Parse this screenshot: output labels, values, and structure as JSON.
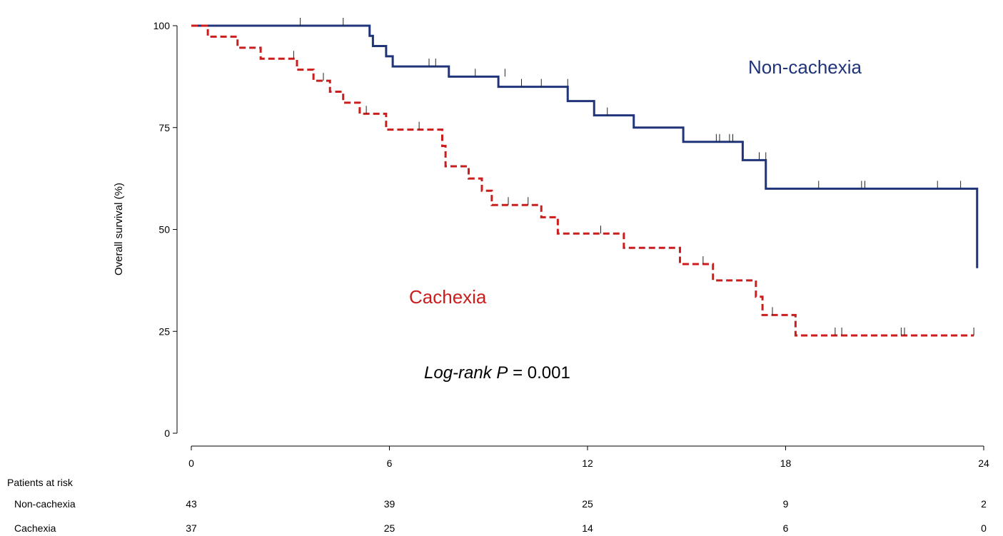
{
  "chart_data": {
    "type": "line",
    "step": true,
    "ylabel": "Overall survival (%)",
    "xlabel": "",
    "xlim": [
      0,
      24
    ],
    "ylim": [
      0,
      100
    ],
    "xticks": [
      0,
      6,
      12,
      18,
      24
    ],
    "yticks": [
      0,
      25,
      50,
      75,
      100
    ],
    "grid": false,
    "annotation_italic": "Log-rank P",
    "annotation_value": " = 0.001",
    "series": [
      {
        "name": "Non-cachexia",
        "color": "#1f3479",
        "dash": "solid",
        "x": [
          0,
          5.4,
          5.5,
          5.9,
          6.1,
          7.8,
          9.3,
          11.4,
          12.2,
          13.4,
          14.9,
          16.7,
          17.4,
          23.8
        ],
        "y": [
          100,
          97.5,
          95,
          92.5,
          90,
          87.5,
          85,
          81.5,
          78,
          75,
          71.5,
          67,
          60,
          40.5
        ],
        "censor_x": [
          3.3,
          4.6,
          7.2,
          7.4,
          8.6,
          9.5,
          10.0,
          10.6,
          11.4,
          12.6,
          15.9,
          16.0,
          16.3,
          16.4,
          17.2,
          17.4,
          19.0,
          20.3,
          20.4,
          22.6,
          23.3
        ],
        "censor_y": [
          100,
          100,
          90,
          90,
          87.5,
          87.5,
          85,
          85,
          85,
          78,
          71.5,
          71.5,
          71.5,
          71.5,
          67,
          67,
          60,
          60,
          60,
          60,
          60
        ]
      },
      {
        "name": "Cachexia",
        "color": "#cc1d1d",
        "dash": "dashed",
        "x": [
          0,
          0.5,
          1.4,
          2.1,
          3.2,
          3.7,
          4.2,
          4.6,
          5.1,
          5.9,
          7.6,
          7.7,
          8.4,
          8.8,
          9.1,
          10.6,
          11.1,
          13.1,
          14.8,
          15.8,
          17.1,
          17.3,
          18.3,
          23.7
        ],
        "y": [
          100,
          97.3,
          94.6,
          91.9,
          89.2,
          86.5,
          83.8,
          81.1,
          78.4,
          74.5,
          70.5,
          65.5,
          62.5,
          59.5,
          56,
          53,
          49,
          45.5,
          41.5,
          37.5,
          33.5,
          29,
          24,
          24
        ],
        "censor_x": [
          3.1,
          4.0,
          5.3,
          6.9,
          9.6,
          10.2,
          12.4,
          15.5,
          17.6,
          19.5,
          19.7,
          21.5,
          21.6,
          23.7
        ],
        "censor_y": [
          91.9,
          86.5,
          78.4,
          74.5,
          56,
          56,
          49,
          41.5,
          29,
          24,
          24,
          24,
          24,
          24
        ]
      }
    ],
    "risk_table": {
      "title": "Patients at risk",
      "times": [
        0,
        6,
        12,
        18,
        24
      ],
      "rows": [
        {
          "label": "Non-cachexia",
          "counts": [
            "43",
            "39",
            "25",
            "9",
            "2"
          ]
        },
        {
          "label": "Cachexia",
          "counts": [
            "37",
            "25",
            "14",
            "6",
            "0"
          ]
        }
      ]
    }
  }
}
